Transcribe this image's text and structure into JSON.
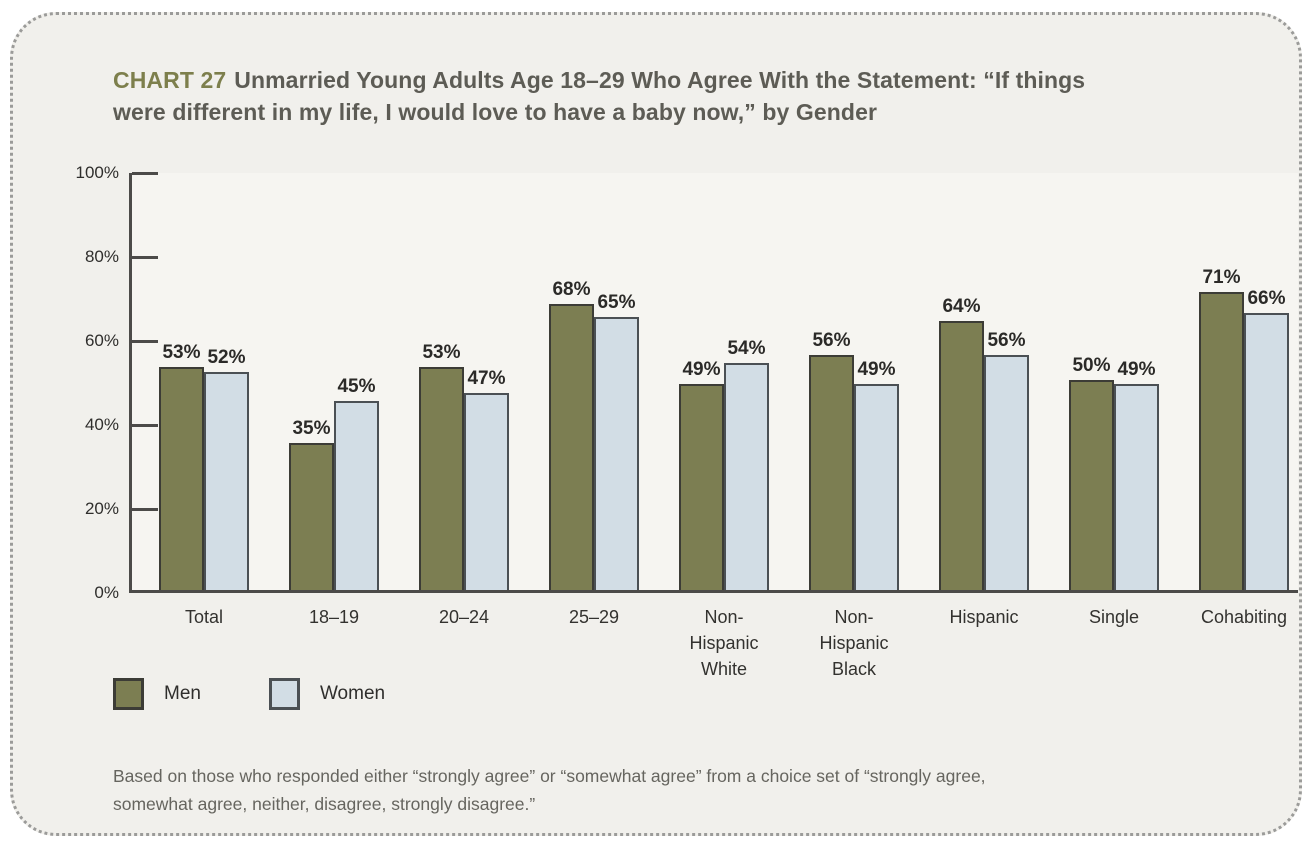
{
  "panel": {
    "chart_label": "CHART 27",
    "title_lines": [
      "Unmarried Young Adults Age 18–29 Who Agree With the Statement: “If things",
      "were different in my life, I would love to have a baby now,” by Gender"
    ],
    "footnote_lines": [
      "Based on those who responded either “strongly agree” or “somewhat agree” from a choice set of “strongly agree,",
      "somewhat agree, neither, disagree, strongly disagree.”"
    ]
  },
  "chart_data": {
    "type": "bar",
    "title": "CHART 27 Unmarried Young Adults Age 18–29 Who Agree With the Statement: “If things were different in my life, I would love to have a baby now,” by Gender",
    "categories": [
      "Total",
      "18–19",
      "20–24",
      "25–29",
      "Non-\nHispanic\nWhite",
      "Non-\nHispanic\nBlack",
      "Hispanic",
      "Single",
      "Cohabiting"
    ],
    "series": [
      {
        "name": "Men",
        "color": "#7c7e52",
        "values": [
          53,
          35,
          53,
          68,
          49,
          56,
          64,
          50,
          71
        ]
      },
      {
        "name": "Women",
        "color": "#d2dde5",
        "values": [
          52,
          45,
          47,
          65,
          54,
          49,
          56,
          49,
          66
        ]
      }
    ],
    "value_suffix": "%",
    "xlabel": "",
    "ylabel": "",
    "ylim": [
      0,
      100
    ],
    "y_ticks": [
      "100%",
      "80%",
      "60%",
      "40%",
      "20%",
      "0%"
    ],
    "grid": false,
    "legend_position": "bottom-left"
  }
}
